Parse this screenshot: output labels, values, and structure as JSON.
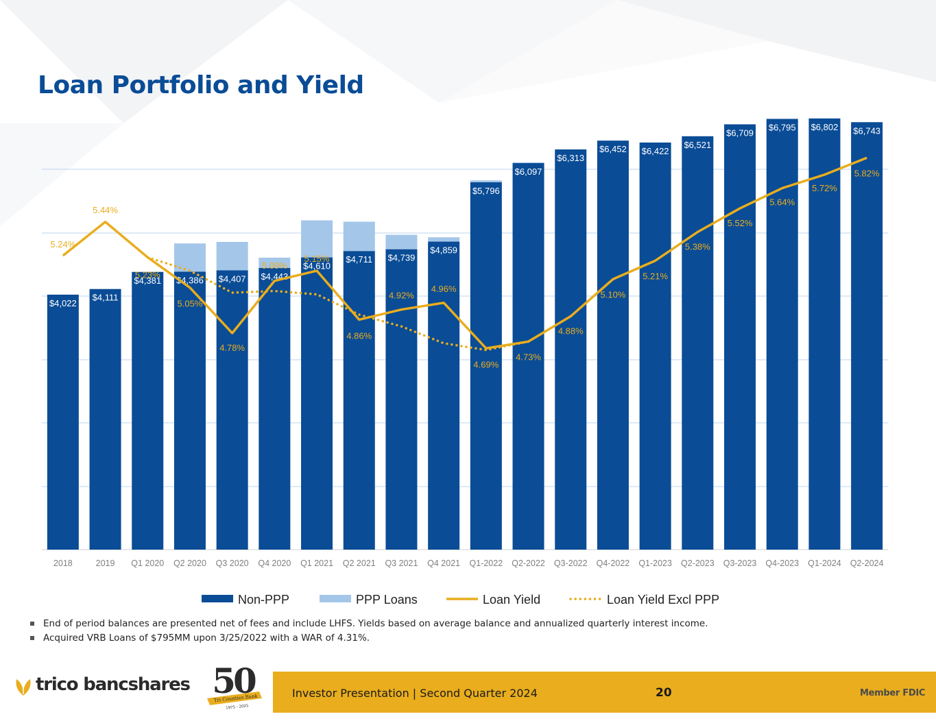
{
  "title": "Loan Portfolio and Yield",
  "colors": {
    "non_ppp": "#0a4c96",
    "ppp": "#a4c6e9",
    "yield": "#e9ad1e",
    "title": "#0a4c96",
    "footer_bar": "#e9ad1e"
  },
  "chart_data": {
    "type": "bar",
    "stacked": true,
    "grid": true,
    "legend_position": "bottom",
    "categories": [
      "2018",
      "2019",
      "Q1 2020",
      "Q2 2020",
      "Q3 2020",
      "Q4 2020",
      "Q1 2021",
      "Q2 2021",
      "Q3 2021",
      "Q4 2021",
      "Q1-2022",
      "Q2-2022",
      "Q3-2022",
      "Q4-2022",
      "Q1-2023",
      "Q2-2023",
      "Q3-2023",
      "Q4-2023",
      "Q1-2024",
      "Q2-2024"
    ],
    "series": [
      {
        "name": "Non-PPP",
        "type": "bar",
        "values": [
          4022,
          4111,
          4381,
          4386,
          4407,
          4443,
          4610,
          4711,
          4739,
          4859,
          5796,
          6097,
          6313,
          6452,
          6422,
          6521,
          6709,
          6795,
          6802,
          6743
        ],
        "labels": [
          "$4,022",
          "$4,111",
          "$4,381",
          "$4,386",
          "$4,407",
          "$4,443",
          "$4,610",
          "$4,711",
          "$4,739",
          "$4,859",
          "$5,796",
          "$6,097",
          "$6,313",
          "$6,452",
          "$6,422",
          "$6,521",
          "$6,709",
          "$6,795",
          "$6,802",
          "$6,743"
        ]
      },
      {
        "name": "PPP Loans",
        "type": "bar",
        "values": [
          0,
          0,
          0,
          444,
          447,
          163,
          584,
          462,
          227,
          68,
          29,
          12,
          0,
          0,
          0,
          0,
          0,
          0,
          0,
          0
        ]
      },
      {
        "name": "Loan Yield",
        "type": "line",
        "unit": "%",
        "values": [
          5.24,
          5.44,
          5.23,
          5.05,
          4.78,
          5.09,
          5.15,
          4.86,
          4.92,
          4.96,
          4.69,
          4.73,
          4.88,
          5.1,
          5.21,
          5.38,
          5.52,
          5.64,
          5.72,
          5.82
        ],
        "labels": [
          "5.24%",
          "5.44%",
          "5.23%",
          "5.05%",
          "4.78%",
          "5.09%",
          "5.15%",
          "4.86%",
          "4.92%",
          "4.96%",
          "4.69%",
          "4.73%",
          "4.88%",
          "5.10%",
          "5.21%",
          "5.38%",
          "5.52%",
          "5.64%",
          "5.72%",
          "5.82%"
        ]
      },
      {
        "name": "Loan Yield Excl PPP",
        "type": "line-dotted",
        "unit": "%",
        "values": [
          null,
          null,
          5.23,
          5.15,
          5.02,
          5.03,
          5.01,
          4.89,
          4.82,
          4.72,
          4.68,
          4.73,
          4.88,
          null,
          null,
          null,
          null,
          null,
          null,
          null
        ]
      }
    ]
  },
  "footnotes": [
    "End of period balances are presented net of fees and include LHFS. Yields based on average balance and annualized quarterly interest income.",
    "Acquired VRB Loans of $795MM upon 3/25/2022 with a WAR of 4.31%."
  ],
  "footer": {
    "presentation": "Investor Presentation  |  Second Quarter 2024",
    "page_number": "20",
    "member": "Member FDIC",
    "brand": "trico bancshares",
    "anniversary_number": "50",
    "anniversary_ribbon": "Tri Counties Bank",
    "anniversary_years": "1975 - 2025"
  }
}
